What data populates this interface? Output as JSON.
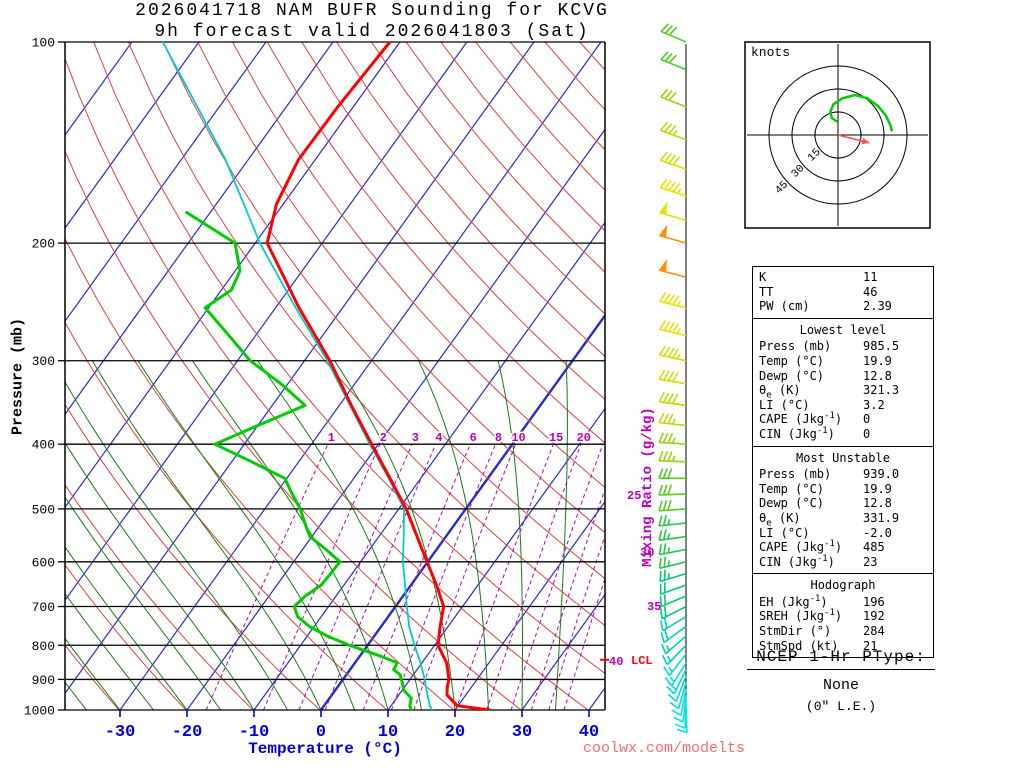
{
  "header": {
    "title_line1": "2026041718 NAM BUFR Sounding for KCVG",
    "title_line2": "9h forecast valid 2026041803 (Sat)"
  },
  "watermark": "coolwx.com/modelts",
  "colors": {
    "isotherm": "#2929cc",
    "dry_adiabat": "#e04040",
    "moist_adiabat": "#128012",
    "mixing_ratio": "#bb00bb",
    "temperature": "#ff0000",
    "dewpoint": "#00cc00",
    "wetbulb": "#00cccc",
    "axis_text": "#0000dd",
    "watermark": "#ff6b6b",
    "lcl": "#ff0000",
    "hodo_trace": "#00cc00",
    "storm_motion": "#ff5050"
  },
  "axes": {
    "pressure_label": "Pressure (mb)",
    "temperature_label": "Temperature (°C)",
    "mixing_label": "Mixing Ratio (g/kg)",
    "pressure_ticks": [
      100,
      200,
      300,
      400,
      500,
      600,
      700,
      800,
      900,
      1000
    ],
    "temperature_ticks": [
      -30,
      -20,
      -10,
      0,
      10,
      20,
      30,
      40
    ]
  },
  "chart_data": {
    "type": "line",
    "subtype": "skewt-logp-sounding",
    "pressure_range_mb": [
      100,
      1000
    ],
    "temperature_axis_range_c": [
      -38,
      42
    ],
    "series": [
      {
        "name": "temperature",
        "color": "#ff0000",
        "points_p_t": [
          [
            1000,
            25.2
          ],
          [
            985.5,
            19.9
          ],
          [
            950,
            17.2
          ],
          [
            925,
            16.4
          ],
          [
            900,
            15.8
          ],
          [
            850,
            13.7
          ],
          [
            800,
            10.5
          ],
          [
            750,
            8.8
          ],
          [
            700,
            7.2
          ],
          [
            650,
            3.8
          ],
          [
            600,
            -0.1
          ],
          [
            550,
            -4.3
          ],
          [
            500,
            -8.9
          ],
          [
            450,
            -14.6
          ],
          [
            400,
            -21.0
          ],
          [
            350,
            -28.2
          ],
          [
            300,
            -36.2
          ],
          [
            250,
            -46.5
          ],
          [
            200,
            -58.2
          ],
          [
            175,
            -61.0
          ],
          [
            150,
            -62.5
          ],
          [
            125,
            -62.3
          ],
          [
            100,
            -61.5
          ]
        ]
      },
      {
        "name": "dewpoint",
        "color": "#00cc00",
        "points_p_t": [
          [
            1000,
            13.5
          ],
          [
            985.5,
            12.8
          ],
          [
            960,
            12.2
          ],
          [
            935,
            10.3
          ],
          [
            910,
            9.2
          ],
          [
            885,
            8.0
          ],
          [
            870,
            6.5
          ],
          [
            850,
            6.3
          ],
          [
            830,
            3.0
          ],
          [
            800,
            -2.7
          ],
          [
            775,
            -7.0
          ],
          [
            750,
            -10.7
          ],
          [
            725,
            -13.5
          ],
          [
            700,
            -15.1
          ],
          [
            675,
            -14.6
          ],
          [
            650,
            -13.4
          ],
          [
            625,
            -13.2
          ],
          [
            600,
            -13.1
          ],
          [
            575,
            -16.5
          ],
          [
            550,
            -20.3
          ],
          [
            525,
            -22.5
          ],
          [
            500,
            -24.7
          ],
          [
            475,
            -27.5
          ],
          [
            450,
            -30.3
          ],
          [
            425,
            -37.0
          ],
          [
            400,
            -44.4
          ],
          [
            375,
            -40.0
          ],
          [
            350,
            -35.1
          ],
          [
            325,
            -41.0
          ],
          [
            300,
            -48.1
          ],
          [
            275,
            -54.0
          ],
          [
            250,
            -60.5
          ],
          [
            235,
            -58.5
          ],
          [
            220,
            -59.3
          ],
          [
            200,
            -63.0
          ],
          [
            180,
            -73.5
          ]
        ]
      },
      {
        "name": "wet_bulb",
        "color": "#00cccc",
        "points_p_t": [
          [
            1000,
            16.6
          ],
          [
            985.5,
            15.8
          ],
          [
            950,
            14.3
          ],
          [
            900,
            12.2
          ],
          [
            850,
            9.8
          ],
          [
            800,
            7.0
          ],
          [
            750,
            4.2
          ],
          [
            700,
            1.7
          ],
          [
            650,
            -0.9
          ],
          [
            600,
            -3.7
          ],
          [
            550,
            -6.3
          ],
          [
            500,
            -9.2
          ],
          [
            450,
            -14.8
          ],
          [
            400,
            -21.3
          ],
          [
            350,
            -28.4
          ],
          [
            300,
            -36.6
          ],
          [
            250,
            -47.0
          ],
          [
            200,
            -59.3
          ],
          [
            150,
            -73.4
          ],
          [
            100,
            -95.4
          ]
        ]
      }
    ],
    "mixing_ratio_lines_g_kg": [
      1,
      2,
      3,
      4,
      6,
      8,
      10,
      15,
      20,
      25,
      30,
      35,
      40
    ],
    "lcl": {
      "label": "LCL",
      "pressure_mb": 841
    },
    "winds_p_dir_spd": [
      [
        985,
        178,
        8
      ],
      [
        970,
        182,
        9
      ],
      [
        950,
        186,
        10
      ],
      [
        930,
        191,
        11
      ],
      [
        910,
        196,
        12
      ],
      [
        890,
        201,
        12
      ],
      [
        870,
        206,
        13
      ],
      [
        850,
        212,
        14
      ],
      [
        825,
        218,
        15
      ],
      [
        800,
        224,
        16
      ],
      [
        775,
        229,
        17
      ],
      [
        750,
        234,
        18
      ],
      [
        725,
        239,
        19
      ],
      [
        700,
        243,
        20
      ],
      [
        675,
        247,
        21
      ],
      [
        650,
        250,
        22
      ],
      [
        625,
        253,
        23
      ],
      [
        600,
        256,
        24
      ],
      [
        575,
        259,
        25
      ],
      [
        550,
        262,
        26
      ],
      [
        525,
        264,
        27
      ],
      [
        500,
        266,
        28
      ],
      [
        475,
        268,
        30
      ],
      [
        450,
        270,
        31
      ],
      [
        425,
        272,
        33
      ],
      [
        400,
        274,
        35
      ],
      [
        375,
        276,
        37
      ],
      [
        350,
        278,
        39
      ],
      [
        325,
        280,
        41
      ],
      [
        300,
        282,
        43
      ],
      [
        275,
        283,
        45
      ],
      [
        250,
        284,
        47
      ],
      [
        225,
        285,
        51
      ],
      [
        200,
        286,
        52
      ],
      [
        185,
        287,
        48
      ],
      [
        170,
        288,
        44
      ],
      [
        155,
        289,
        40
      ],
      [
        140,
        290,
        36
      ],
      [
        125,
        291,
        32
      ],
      [
        110,
        292,
        30
      ],
      [
        100,
        293,
        28
      ]
    ],
    "hodograph": {
      "unit_label": "knots",
      "ring_labels_kt": [
        15,
        30,
        45
      ],
      "trace_uv_kt": [
        [
          35,
          3
        ],
        [
          34,
          7
        ],
        [
          31,
          13
        ],
        [
          26,
          19
        ],
        [
          19,
          24
        ],
        [
          11,
          26
        ],
        [
          3,
          24
        ],
        [
          -3,
          20
        ],
        [
          -5,
          15
        ],
        [
          -4,
          11
        ],
        [
          -1,
          9
        ]
      ],
      "storm_motion": {
        "dir_deg": 284,
        "spd_kt": 21
      }
    }
  },
  "stats_panel": {
    "sections": [
      {
        "header": null,
        "rows": [
          [
            "K",
            "11"
          ],
          [
            "TT",
            "46"
          ],
          [
            "PW (cm)",
            "2.39"
          ]
        ]
      },
      {
        "header": "Lowest level",
        "rows": [
          [
            "Press (mb)",
            "985.5"
          ],
          [
            "Temp (°C)",
            "19.9"
          ],
          [
            "Dewp (°C)",
            "12.8"
          ],
          [
            "θe (K)",
            "321.3"
          ],
          [
            "LI (°C)",
            "3.2"
          ],
          [
            "CAPE (Jkg⁻¹)",
            "0"
          ],
          [
            "CIN (Jkg⁻¹)",
            "0"
          ]
        ]
      },
      {
        "header": "Most Unstable",
        "rows": [
          [
            "Press (mb)",
            "939.0"
          ],
          [
            "Temp (°C)",
            "19.9"
          ],
          [
            "Dewp (°C)",
            "12.8"
          ],
          [
            "θe (K)",
            "331.9"
          ],
          [
            "LI (°C)",
            "-2.0"
          ],
          [
            "CAPE (Jkg⁻¹)",
            "485"
          ],
          [
            "CIN (Jkg⁻¹)",
            "23"
          ]
        ]
      },
      {
        "header": "Hodograph",
        "rows": [
          [
            "EH (Jkg⁻¹)",
            "196"
          ],
          [
            "SREH (Jkg⁻¹)",
            "192"
          ],
          [
            "StmDir (°)",
            "284"
          ],
          [
            "StmSpd (kt)",
            "21"
          ]
        ]
      }
    ]
  },
  "ptype": {
    "title": "NCEP 1-Hr PType:",
    "value": "None",
    "note": "(0\" L.E.)"
  }
}
